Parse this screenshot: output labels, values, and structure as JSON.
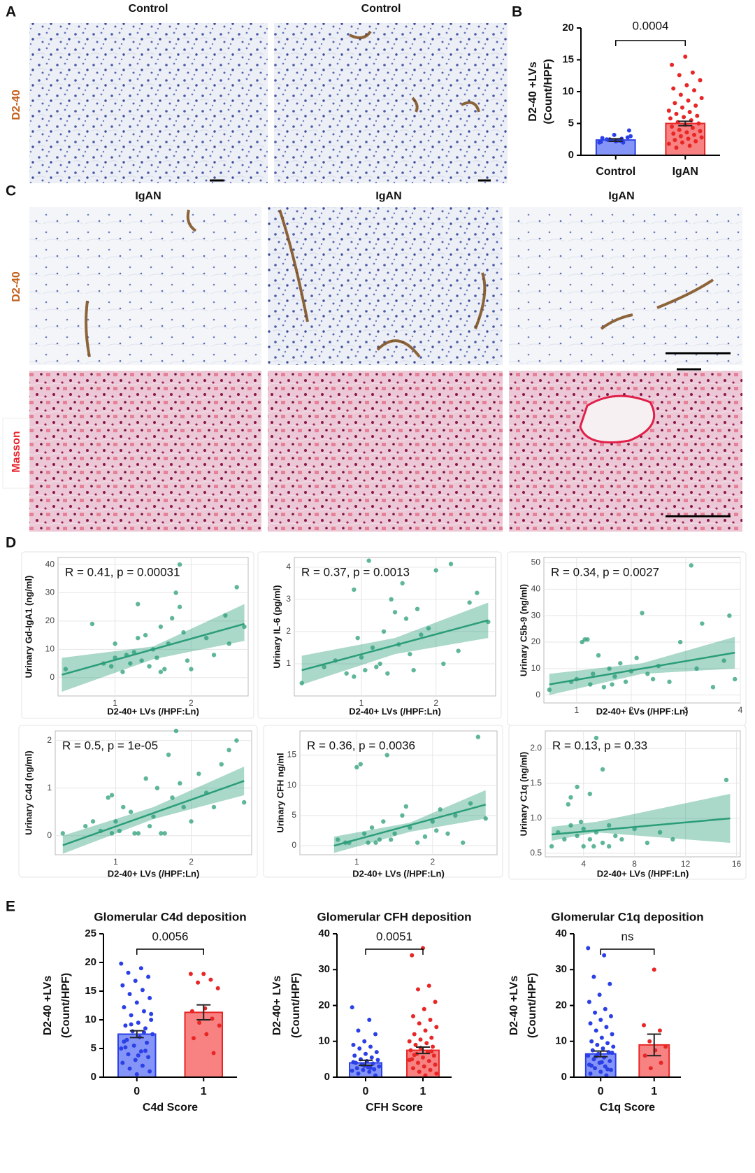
{
  "figure": {
    "panel_labels": [
      "A",
      "B",
      "C",
      "D",
      "E"
    ],
    "panel_a": {
      "titles": [
        "Control",
        "Control"
      ],
      "row_label": "D2-40"
    },
    "panel_c": {
      "titles": [
        "IgAN",
        "IgAN",
        "IgAN"
      ],
      "row_labels": [
        "D2-40",
        "Masson"
      ]
    }
  },
  "chart_data": [
    {
      "type": "bar",
      "ylabel": [
        "D2-40 +LVs",
        "(Count/HPF)"
      ],
      "categories": [
        "Control",
        "IgAN"
      ],
      "values": [
        2.4,
        5.0
      ],
      "errors": [
        0.2,
        0.35
      ],
      "colors": [
        "#7083f6",
        "#f76c6c"
      ],
      "point_colors": [
        "#2a3fe6",
        "#e82626"
      ],
      "points": [
        [
          2.0,
          2.3,
          2.5,
          2.8,
          3.2,
          2.1,
          2.6,
          2.4,
          3.9,
          2.2,
          2.7,
          2.0,
          2.5,
          3.0,
          2.3
        ],
        [
          15.5,
          14.2,
          13.0,
          12.6,
          11.8,
          11.0,
          10.5,
          10.2,
          9.5,
          9.0,
          8.6,
          8.2,
          7.8,
          7.5,
          7.0,
          6.8,
          6.5,
          6.2,
          6.0,
          5.8,
          5.5,
          5.2,
          5.0,
          4.8,
          4.5,
          4.3,
          4.0,
          3.8,
          3.6,
          3.4,
          3.2,
          3.0,
          2.8,
          2.6,
          2.4,
          2.2,
          2.0,
          1.8,
          1.5,
          1.2
        ]
      ],
      "ylim": [
        0,
        20
      ],
      "yticks": [
        0,
        5,
        10,
        15,
        20
      ],
      "significance": "0.0004"
    },
    {
      "type": "scatter",
      "annotation": "R = 0.41, p = 0.00031",
      "xlabel": "D2-40+ LVs (/HPF:Ln)",
      "ylabel": "Urinary Gd-IgA1 (ng/ml)",
      "color": "#2a9d78",
      "x": [
        0.35,
        0.7,
        0.85,
        0.95,
        1.0,
        1.1,
        1.15,
        1.2,
        1.25,
        1.3,
        1.35,
        1.4,
        1.45,
        1.5,
        1.55,
        1.6,
        1.65,
        1.7,
        1.75,
        1.8,
        1.85,
        1.9,
        1.95,
        2.0,
        2.2,
        2.3,
        2.45,
        2.5,
        2.6,
        2.7,
        1.85,
        1.3,
        1.0,
        1.6
      ],
      "y": [
        3,
        19,
        5,
        4,
        12,
        2,
        8,
        5,
        9,
        26,
        6,
        15,
        4,
        10,
        7,
        18,
        3,
        12,
        21,
        30,
        40,
        16,
        6,
        3,
        14,
        8,
        22,
        12,
        32,
        18,
        25,
        14,
        7,
        2
      ],
      "fit": {
        "x": [
          0.3,
          2.7
        ],
        "y": [
          1,
          19
        ]
      },
      "band": {
        "x": [
          0.3,
          1.5,
          2.7
        ],
        "lower": [
          -5,
          6.5,
          13
        ],
        "upper": [
          7,
          11,
          26
        ]
      },
      "xlim": [
        0.25,
        2.75
      ],
      "ylim": [
        -6.5,
        42.5
      ],
      "xticks": [
        1,
        2
      ],
      "yticks": [
        0,
        10,
        20,
        30,
        40
      ],
      "grid": true
    },
    {
      "type": "scatter",
      "annotation": "R = 0.37, p = 0.0013",
      "xlabel": "D2-40+ LVs (/HPF:Ln)",
      "ylabel": "Urinary IL-6 (pg/ml)",
      "color": "#2a9d78",
      "x": [
        0.2,
        0.5,
        0.65,
        0.8,
        0.9,
        0.95,
        1.0,
        1.05,
        1.1,
        1.15,
        1.2,
        1.3,
        1.35,
        1.4,
        1.5,
        1.55,
        1.6,
        1.7,
        1.75,
        1.8,
        1.9,
        2.0,
        2.1,
        2.2,
        2.3,
        2.45,
        2.55,
        2.7,
        0.9,
        1.25,
        1.45,
        1.65
      ],
      "y": [
        0.4,
        0.9,
        1.1,
        0.7,
        3.3,
        1.8,
        1.2,
        0.8,
        4.2,
        1.5,
        0.9,
        2.0,
        0.7,
        3.0,
        1.6,
        3.5,
        2.4,
        0.8,
        2.7,
        1.9,
        2.1,
        3.9,
        1.0,
        4.1,
        1.4,
        2.9,
        3.2,
        2.3,
        0.6,
        1.0,
        2.6,
        1.3
      ],
      "fit": {
        "x": [
          0.2,
          2.7
        ],
        "y": [
          0.8,
          2.35
        ]
      },
      "band": {
        "x": [
          0.2,
          1.45,
          2.7
        ],
        "lower": [
          0.35,
          1.3,
          1.8
        ],
        "upper": [
          1.25,
          1.8,
          2.9
        ]
      },
      "xlim": [
        0.1,
        2.8
      ],
      "ylim": [
        0,
        4.3
      ],
      "xticks": [
        1,
        2
      ],
      "yticks": [
        1,
        2,
        3,
        4
      ],
      "grid": true
    },
    {
      "type": "scatter",
      "annotation": "R = 0.34, p = 0.0027",
      "xlabel": "D2-40+ LVs (/HPF:Ln)",
      "ylabel": "Urinary C5b-9 (ng/ml)",
      "color": "#2a9d78",
      "x": [
        0.5,
        0.9,
        1.0,
        1.1,
        1.2,
        1.25,
        1.3,
        1.4,
        1.5,
        1.6,
        1.7,
        1.8,
        1.9,
        2.0,
        2.1,
        2.2,
        2.3,
        2.4,
        2.5,
        2.7,
        2.9,
        3.1,
        3.2,
        3.3,
        3.5,
        3.7,
        3.8,
        3.9,
        1.15,
        1.65
      ],
      "y": [
        2,
        5,
        6,
        20,
        21,
        4,
        8,
        15,
        3,
        10,
        7,
        12,
        5,
        9,
        14,
        31,
        8,
        6,
        11,
        5,
        20,
        49,
        10,
        27,
        3,
        13,
        30,
        6,
        21,
        4
      ],
      "fit": {
        "x": [
          0.5,
          3.9
        ],
        "y": [
          4,
          16
        ]
      },
      "band": {
        "x": [
          0.5,
          2.2,
          3.9
        ],
        "lower": [
          0,
          8,
          10
        ],
        "upper": [
          8,
          12,
          22
        ]
      },
      "xlim": [
        0.4,
        4.0
      ],
      "ylim": [
        -3,
        52
      ],
      "xticks": [
        1,
        2,
        3,
        4
      ],
      "yticks": [
        0,
        10,
        20,
        30,
        40,
        50
      ],
      "grid": true
    },
    {
      "type": "scatter",
      "annotation": "R = 0.5, p = 1e-05",
      "xlabel": "D2-40+ LVs (/HPF:Ln)",
      "ylabel": "Urinary C4d (ng/ml)",
      "color": "#2a9d78",
      "x": [
        0.3,
        0.6,
        0.7,
        0.8,
        0.9,
        0.95,
        1.0,
        1.05,
        1.1,
        1.2,
        1.3,
        1.4,
        1.5,
        1.55,
        1.6,
        1.7,
        1.75,
        1.8,
        1.85,
        1.9,
        2.0,
        2.1,
        2.2,
        2.3,
        2.4,
        2.5,
        2.6,
        2.7,
        1.25,
        1.65,
        0.95,
        1.45
      ],
      "y": [
        0.05,
        0.2,
        0.3,
        0.1,
        0.8,
        0.05,
        0.3,
        0.1,
        0.6,
        0.5,
        0.05,
        1.2,
        0.4,
        1.0,
        0.05,
        1.7,
        0.8,
        2.2,
        1.1,
        0.6,
        0.3,
        1.3,
        0.9,
        0.6,
        1.5,
        1.8,
        2.0,
        0.7,
        0.05,
        0.05,
        0.85,
        0.2
      ],
      "fit": {
        "x": [
          0.3,
          2.7
        ],
        "y": [
          -0.2,
          1.15
        ]
      },
      "band": {
        "x": [
          0.3,
          1.5,
          2.7
        ],
        "lower": [
          -0.38,
          0.35,
          0.85
        ],
        "upper": [
          0.0,
          0.6,
          1.45
        ]
      },
      "xlim": [
        0.2,
        2.8
      ],
      "ylim": [
        -0.4,
        2.2
      ],
      "xticks": [
        1,
        2
      ],
      "yticks": [
        0,
        1,
        2
      ],
      "grid": true
    },
    {
      "type": "scatter",
      "annotation": "R = 0.36, p = 0.0036",
      "xlabel": "D2-40+ LVs (/HPF:Ln)",
      "ylabel": "Urinary CFH ng/ml",
      "color": "#2a9d78",
      "x": [
        0.75,
        0.9,
        1.0,
        1.05,
        1.1,
        1.15,
        1.2,
        1.3,
        1.4,
        1.5,
        1.6,
        1.7,
        1.8,
        1.9,
        2.0,
        2.1,
        2.2,
        2.3,
        2.4,
        2.5,
        2.6,
        2.7,
        1.25,
        1.45,
        0.85,
        1.65,
        2.05,
        1.35
      ],
      "y": [
        1,
        0.5,
        13,
        13.5,
        2,
        0.5,
        3,
        1,
        15,
        2,
        5,
        3,
        0.5,
        1.5,
        4,
        6,
        2,
        5,
        0.5,
        7,
        18,
        4.5,
        0.5,
        1,
        0.5,
        6.5,
        2.5,
        4
      ],
      "fit": {
        "x": [
          0.7,
          2.7
        ],
        "y": [
          0,
          6.8
        ]
      },
      "band": {
        "x": [
          0.7,
          1.7,
          2.7
        ],
        "lower": [
          -1.2,
          2.3,
          4.5
        ],
        "upper": [
          1.5,
          3.8,
          9.2
        ]
      },
      "xlim": [
        0.25,
        2.85
      ],
      "ylim": [
        -1.5,
        19
      ],
      "xticks": [
        1,
        2
      ],
      "yticks": [
        0,
        5,
        10,
        15
      ],
      "grid": true
    },
    {
      "type": "scatter",
      "annotation": "R = 0.13, p = 0.33",
      "xlabel": "D2-40+ LVs (/HPF:Ln)",
      "ylabel": "Urinary C1q (ng/ml)",
      "color": "#2a9d78",
      "x": [
        1.5,
        2,
        2.5,
        3,
        3,
        3.5,
        3.5,
        4,
        4,
        4.5,
        4.5,
        5,
        5,
        5.5,
        5.5,
        6,
        6,
        6.5,
        7,
        8,
        9,
        10,
        11,
        15.2,
        2.8,
        3.8,
        4.8
      ],
      "y": [
        0.6,
        0.8,
        0.7,
        1.3,
        0.9,
        1.45,
        0.75,
        0.6,
        0.85,
        1.35,
        0.7,
        2.15,
        0.8,
        0.65,
        1.7,
        0.9,
        0.6,
        0.75,
        0.7,
        0.85,
        0.65,
        0.8,
        0.7,
        1.55,
        1.2,
        0.95,
        0.6
      ],
      "fit": {
        "x": [
          1.5,
          15.5
        ],
        "y": [
          0.77,
          1.0
        ]
      },
      "band": {
        "x": [
          1.5,
          5,
          15.5
        ],
        "lower": [
          0.68,
          0.8,
          0.65
        ],
        "upper": [
          0.88,
          0.95,
          1.35
        ]
      },
      "xlim": [
        1,
        16.3
      ],
      "ylim": [
        0.45,
        2.25
      ],
      "xticks": [
        4,
        8,
        12,
        16
      ],
      "yticks": [
        0.5,
        {
          "value": 1,
          "label": "1.0"
        },
        1.5,
        {
          "value": 2,
          "label": "2.0"
        }
      ],
      "grid": true
    },
    {
      "type": "bar",
      "title": "Glomerular C4d deposition",
      "xlabel": "C4d Score",
      "ylabel": [
        "D2-40 +LVs",
        "(Count/HPF)"
      ],
      "categories": [
        "0",
        "1"
      ],
      "values": [
        7.5,
        11.3
      ],
      "errors": [
        0.6,
        1.3
      ],
      "colors": [
        "#7083f6",
        "#f76c6c"
      ],
      "point_colors": [
        "#2a3fe6",
        "#e82626"
      ],
      "points": [
        [
          19.8,
          19.0,
          18.2,
          17.5,
          16.8,
          16.0,
          15.2,
          14.5,
          13.8,
          13.0,
          12.2,
          11.5,
          10.8,
          10.0,
          9.5,
          9.0,
          8.5,
          8.0,
          7.5,
          7.0,
          6.5,
          6.0,
          5.5,
          5.0,
          4.5,
          4.0,
          3.5,
          3.0,
          2.5,
          2.0,
          1.5,
          1.0,
          0.5,
          6.2,
          7.8,
          9.2,
          11.0,
          3.8,
          5.2,
          4.6
        ],
        [
          18,
          18,
          17,
          16.5,
          15.5,
          12,
          11.5,
          10.2,
          9.5,
          9.0,
          7.5,
          6.8,
          4.2
        ]
      ],
      "ylim": [
        0,
        25
      ],
      "yticks": [
        0,
        5,
        10,
        15,
        20,
        25
      ],
      "significance": "0.0056"
    },
    {
      "type": "bar",
      "title": "Glomerular CFH deposition",
      "xlabel": "CFH Score",
      "ylabel": [
        "D2-40+ LVs",
        "(Count/HPF)"
      ],
      "categories": [
        "0",
        "1"
      ],
      "values": [
        4.0,
        7.5
      ],
      "errors": [
        0.7,
        0.9
      ],
      "colors": [
        "#7083f6",
        "#f76c6c"
      ],
      "point_colors": [
        "#2a3fe6",
        "#e82626"
      ],
      "points": [
        [
          19.5,
          16,
          13,
          12,
          10,
          9,
          8.5,
          8,
          7,
          6.5,
          6,
          5.5,
          5,
          4.8,
          4.5,
          4,
          3.8,
          3.5,
          3,
          2.8,
          2.5,
          2.2,
          2,
          1.8,
          1.5,
          1,
          0.5,
          3.2,
          4.2,
          2.6
        ],
        [
          36,
          34,
          25.5,
          24.5,
          21,
          19,
          17,
          16,
          15,
          14,
          13,
          12,
          11,
          10.5,
          10,
          9.5,
          9,
          8.5,
          8,
          7.5,
          7,
          6.5,
          6,
          5.5,
          5,
          4.5,
          4,
          3.5,
          3,
          2.5,
          2,
          1.5,
          1,
          0.5,
          6.2,
          7.2,
          8.2,
          4.8
        ]
      ],
      "ylim": [
        0,
        40
      ],
      "yticks": [
        0,
        10,
        20,
        30,
        40
      ],
      "significance": "0.0051"
    },
    {
      "type": "bar",
      "title": "Glomerular C1q deposition",
      "xlabel": "C1q Score",
      "ylabel": [
        "D2-40 +LVs",
        "(Count/HPF)"
      ],
      "categories": [
        "0",
        "1"
      ],
      "values": [
        6.5,
        9.0
      ],
      "errors": [
        0.8,
        3.0
      ],
      "colors": [
        "#7083f6",
        "#f76c6c"
      ],
      "point_colors": [
        "#2a3fe6",
        "#e82626"
      ],
      "points": [
        [
          36,
          34,
          28,
          26,
          23,
          21,
          19,
          18,
          17,
          16,
          15,
          14,
          13,
          12,
          11,
          10,
          9.5,
          9,
          8.5,
          8,
          7.5,
          7,
          6.5,
          6,
          5.5,
          5,
          4.5,
          4,
          3.5,
          3,
          2.5,
          2,
          1.5,
          1,
          0.5,
          5.8,
          6.8,
          4.2,
          3.2,
          2.2
        ],
        [
          30,
          14.5,
          13,
          10,
          8.5,
          7.5,
          6,
          4,
          2.5
        ]
      ],
      "ylim": [
        0,
        40
      ],
      "yticks": [
        0,
        10,
        20,
        30,
        40
      ],
      "significance": "ns"
    }
  ]
}
